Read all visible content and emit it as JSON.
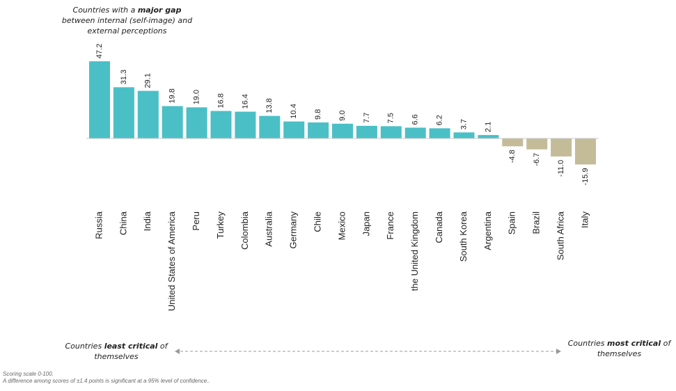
{
  "chart_data": {
    "type": "bar",
    "categories": [
      "Russia",
      "China",
      "India",
      "United States of America",
      "Peru",
      "Turkey",
      "Colombia",
      "Australia",
      "Germany",
      "Chile",
      "Mexico",
      "Japan",
      "France",
      "the United Kingdom",
      "Canada",
      "South Korea",
      "Argentina",
      "Spain",
      "Brazil",
      "South Africa",
      "Italy"
    ],
    "values": [
      47.2,
      31.3,
      29.1,
      19.8,
      19.0,
      16.8,
      16.4,
      13.8,
      10.4,
      9.8,
      9.0,
      7.7,
      7.5,
      6.6,
      6.2,
      3.7,
      2.1,
      -4.8,
      -6.7,
      -11.0,
      -15.9
    ],
    "data_labels": [
      "47.2",
      "31.3",
      "29.1",
      "19.8",
      "19.0",
      "16.8",
      "16.4",
      "13.8",
      "10.4",
      "9.8",
      "9.0",
      "7.7",
      "7.5",
      "6.6",
      "6.2",
      "3.7",
      "2.1",
      "-4.8",
      "-6.7",
      "-11.0",
      "-15.9"
    ],
    "colors": {
      "positive": "#4BBFC6",
      "negative": "#C4BC98",
      "axis": "#c8c8c8",
      "arrow": "#999999"
    },
    "grid": false
  },
  "annotations": {
    "top": {
      "pre": "Countries with a ",
      "bold": "major gap",
      "post": " between internal (self-image) and external perceptions"
    },
    "left": {
      "pre": "Countries ",
      "bold": "least critical",
      "post": " of themselves"
    },
    "right": {
      "pre": "Countries ",
      "bold": "most critical",
      "post": " of themselves"
    }
  },
  "footnote": {
    "line1": "Scoring scale 0-100.",
    "line2": "A difference among scores of ±1.4 points is significant at a 95% level of confidence.."
  }
}
